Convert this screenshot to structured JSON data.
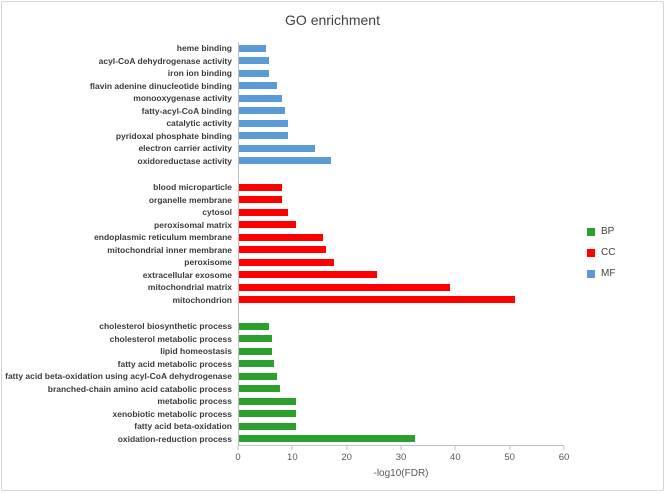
{
  "chart_data": {
    "type": "bar",
    "orientation": "horizontal",
    "title": "GO enrichment",
    "xlabel": "-log10(FDR)",
    "xlim": [
      0,
      60
    ],
    "xticks": [
      0,
      10,
      20,
      30,
      40,
      50,
      60
    ],
    "grid": false,
    "legend_position": "right",
    "legend": [
      {
        "label": "BP",
        "color": "#2ca02c"
      },
      {
        "label": "CC",
        "color": "#ff0000"
      },
      {
        "label": "MF",
        "color": "#5b9bd5"
      }
    ],
    "groups": [
      {
        "name": "MF",
        "color": "#5b9bd5",
        "items": [
          {
            "label": "heme binding",
            "value": 5
          },
          {
            "label": "acyl-CoA dehydrogenase activity",
            "value": 5.5
          },
          {
            "label": "iron ion binding",
            "value": 5.5
          },
          {
            "label": "flavin adenine dinucleotide binding",
            "value": 7
          },
          {
            "label": "monooxygenase activity",
            "value": 8
          },
          {
            "label": "fatty-acyl-CoA binding",
            "value": 8.5
          },
          {
            "label": "catalytic activity",
            "value": 9
          },
          {
            "label": "pyridoxal phosphate binding",
            "value": 9
          },
          {
            "label": "electron carrier activity",
            "value": 14
          },
          {
            "label": "oxidoreductase activity",
            "value": 17
          }
        ]
      },
      {
        "name": "CC",
        "color": "#ff0000",
        "items": [
          {
            "label": "blood microparticle",
            "value": 8
          },
          {
            "label": "organelle membrane",
            "value": 8
          },
          {
            "label": "cytosol",
            "value": 9
          },
          {
            "label": "peroxisomal matrix",
            "value": 10.5
          },
          {
            "label": "endoplasmic reticulum membrane",
            "value": 15.5
          },
          {
            "label": "mitochondrial inner membrane",
            "value": 16
          },
          {
            "label": "peroxisome",
            "value": 17.5
          },
          {
            "label": "extracellular exosome",
            "value": 25.5
          },
          {
            "label": "mitochondrial matrix",
            "value": 39
          },
          {
            "label": "mitochondrion",
            "value": 51
          }
        ]
      },
      {
        "name": "BP",
        "color": "#2ca02c",
        "items": [
          {
            "label": "cholesterol biosynthetic process",
            "value": 5.5
          },
          {
            "label": "cholesterol metabolic process",
            "value": 6
          },
          {
            "label": "lipid homeostasis",
            "value": 6
          },
          {
            "label": "fatty acid metabolic process",
            "value": 6.5
          },
          {
            "label": "fatty acid beta-oxidation using acyl-CoA dehydrogenase",
            "value": 7
          },
          {
            "label": "branched-chain amino acid catabolic process",
            "value": 7.5
          },
          {
            "label": "metabolic process",
            "value": 10.5
          },
          {
            "label": "xenobiotic metabolic process",
            "value": 10.5
          },
          {
            "label": "fatty acid beta-oxidation",
            "value": 10.5
          },
          {
            "label": "oxidation-reduction process",
            "value": 32.5
          }
        ]
      }
    ]
  }
}
